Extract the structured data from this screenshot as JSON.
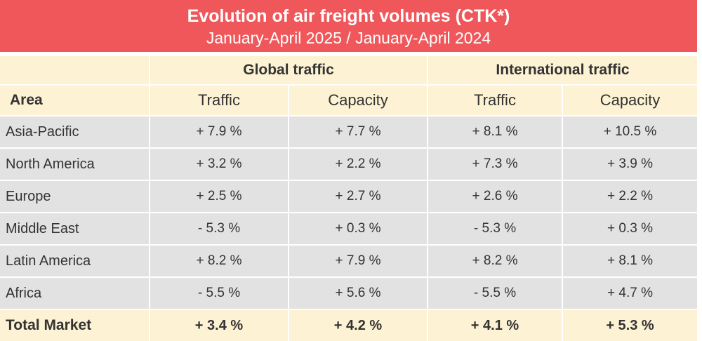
{
  "title": "Evolution of air freight volumes (CTK*)",
  "subtitle": "January-April 2025 / January-April 2024",
  "header": {
    "group_global": "Global traffic",
    "group_international": "International traffic",
    "area": "Area",
    "cols": [
      "Traffic",
      "Capacity",
      "Traffic",
      "Capacity"
    ]
  },
  "rows": [
    {
      "area": "Asia-Pacific",
      "values": [
        "+ 7.9 %",
        "+ 7.7 %",
        "+ 8.1 %",
        "+ 10.5 %"
      ]
    },
    {
      "area": "North America",
      "values": [
        "+ 3.2 %",
        "+ 2.2 %",
        "+ 7.3 %",
        "+ 3.9 %"
      ]
    },
    {
      "area": "Europe",
      "values": [
        "+ 2.5 %",
        "+ 2.7 %",
        "+ 2.6 %",
        "+ 2.2 %"
      ]
    },
    {
      "area": "Middle East",
      "values": [
        "- 5.3 %",
        "+ 0.3 %",
        "- 5.3 %",
        "+ 0.3 %"
      ]
    },
    {
      "area": "Latin America",
      "values": [
        "+ 8.2 %",
        "+ 7.9 %",
        "+ 8.2 %",
        "+ 8.1 %"
      ]
    },
    {
      "area": "Africa",
      "values": [
        "- 5.5 %",
        "+ 5.6 %",
        "- 5.5 %",
        "+ 4.7 %"
      ]
    }
  ],
  "total": {
    "area": "Total Market",
    "values": [
      "+ 3.4 %",
      "+ 4.2 %",
      "+ 4.1 %",
      "+ 5.3 %"
    ]
  },
  "colors": {
    "title_bg": "#f0575b",
    "header_bg": "#fdf2d3",
    "row_bg": "#e2e2e2"
  }
}
